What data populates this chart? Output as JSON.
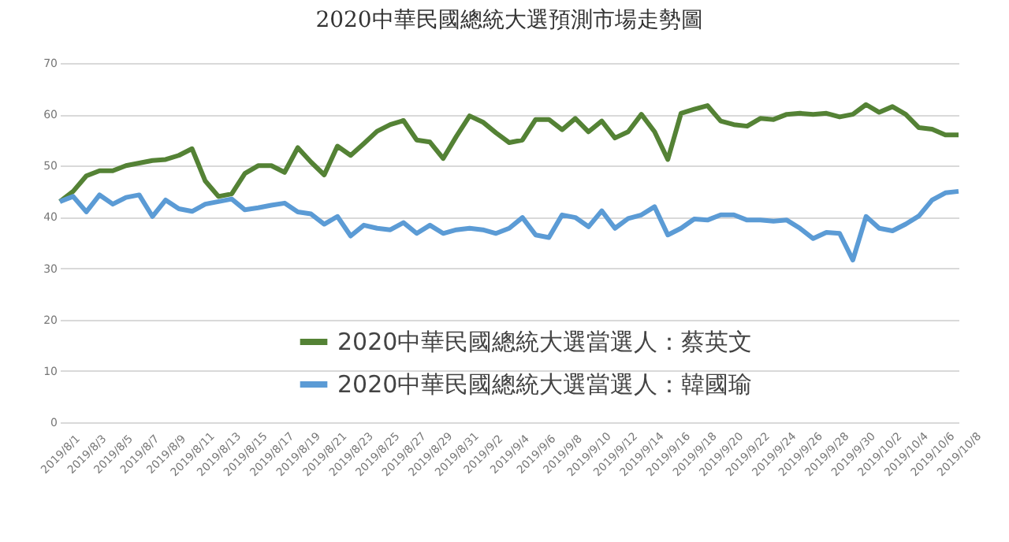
{
  "chart_data": {
    "type": "line",
    "title": "2020中華民國總統大選預測市場走勢圖",
    "categories": [
      "2019/8/1",
      null,
      "2019/8/3",
      null,
      "2019/8/5",
      null,
      "2019/8/7",
      null,
      "2019/8/9",
      null,
      "2019/8/11",
      null,
      "2019/8/13",
      null,
      "2019/8/15",
      null,
      "2019/8/17",
      null,
      "2019/8/19",
      null,
      "2019/8/21",
      null,
      "2019/8/23",
      null,
      "2019/8/25",
      null,
      "2019/8/27",
      null,
      "2019/8/29",
      null,
      "2019/8/31",
      null,
      "2019/9/2",
      null,
      "2019/9/4",
      null,
      "2019/9/6",
      null,
      "2019/9/8",
      null,
      "2019/9/10",
      null,
      "2019/9/12",
      null,
      "2019/9/14",
      null,
      "2019/9/16",
      null,
      "2019/9/18",
      null,
      "2019/9/20",
      null,
      "2019/9/22",
      null,
      "2019/9/24",
      null,
      "2019/9/26",
      null,
      "2019/9/28",
      null,
      "2019/9/30",
      null,
      "2019/10/2",
      null,
      "2019/10/4",
      null,
      "2019/10/6",
      null,
      "2019/10/8"
    ],
    "series": [
      {
        "name": "2020中華民國總統大選當選人：蔡英文",
        "color": "#548235",
        "values": [
          43,
          45,
          48,
          49,
          49,
          50,
          50.5,
          51,
          51.2,
          52,
          53.3,
          47,
          44,
          44.5,
          48.5,
          50,
          50,
          48.7,
          53.5,
          50.7,
          48.2,
          53.8,
          52,
          54.3,
          56.7,
          58,
          58.8,
          55,
          54.6,
          51.4,
          55.7,
          59.7,
          58.5,
          56.4,
          54.5,
          55,
          59,
          59,
          57,
          59.2,
          56.6,
          58.7,
          55.4,
          56.6,
          60,
          56.6,
          51.2,
          60.2,
          61,
          61.7,
          58.7,
          58,
          57.7,
          59.2,
          59,
          60,
          60.2,
          60,
          60.2,
          59.5,
          60,
          61.9,
          60.4,
          61.5,
          60,
          57.4,
          57.1,
          56,
          56
        ]
      },
      {
        "name": "2020中華民國總統大選當選人：韓國瑜",
        "color": "#5b9bd5",
        "values": [
          43,
          44,
          41,
          44.3,
          42.5,
          43.8,
          44.3,
          40.1,
          43.3,
          41.6,
          41.1,
          42.5,
          43,
          43.5,
          41.4,
          41.8,
          42.3,
          42.7,
          41,
          40.6,
          38.6,
          40.1,
          36.3,
          38.4,
          37.8,
          37.5,
          38.9,
          36.8,
          38.4,
          36.8,
          37.5,
          37.8,
          37.5,
          36.8,
          37.8,
          39.9,
          36.5,
          36,
          40.4,
          39.9,
          38.1,
          41.2,
          37.8,
          39.7,
          40.4,
          42,
          36.5,
          37.8,
          39.6,
          39.4,
          40.4,
          40.4,
          39.4,
          39.4,
          39.2,
          39.4,
          37.8,
          35.8,
          37,
          36.8,
          31.6,
          40.1,
          37.8,
          37.3,
          38.6,
          40.2,
          43.3,
          44.7,
          45
        ]
      }
    ],
    "ylim": [
      0,
      70
    ],
    "yticks": [
      0,
      10,
      20,
      30,
      40,
      50,
      60,
      70
    ],
    "grid": "y",
    "legend": "bottom"
  }
}
